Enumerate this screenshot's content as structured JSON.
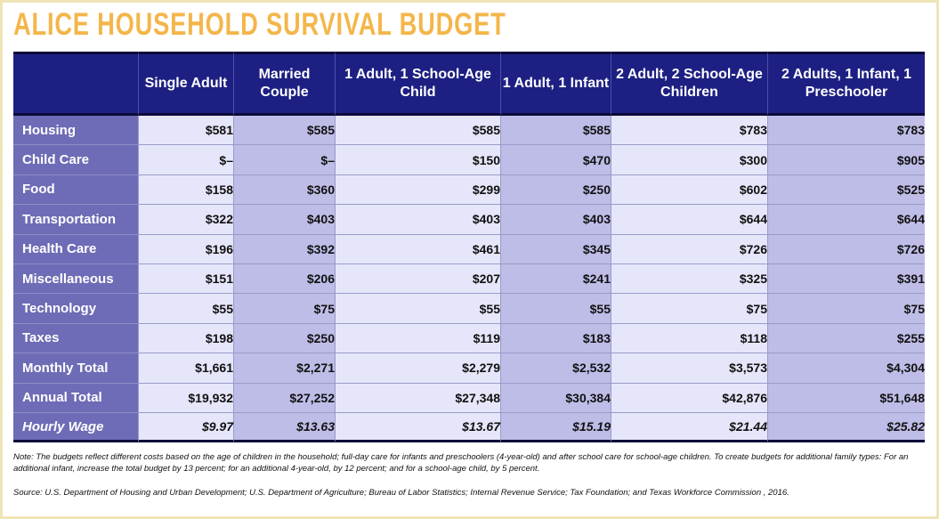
{
  "title": "ALICE HOUSEHOLD SURVIVAL BUDGET",
  "table": {
    "columns": [
      "",
      "Single Adult",
      "Married Couple",
      "1 Adult, 1 School-Age Child",
      "1 Adult, 1 Infant",
      "2 Adult, 2 School-Age Children",
      "2 Adults, 1 Infant, 1 Preschooler"
    ],
    "rows": [
      {
        "label": "Housing",
        "values": [
          "$581",
          "$585",
          "$585",
          "$585",
          "$783",
          "$783"
        ]
      },
      {
        "label": "Child Care",
        "values": [
          "$–",
          "$–",
          "$150",
          "$470",
          "$300",
          "$905"
        ]
      },
      {
        "label": "Food",
        "values": [
          "$158",
          "$360",
          "$299",
          "$250",
          "$602",
          "$525"
        ]
      },
      {
        "label": "Transportation",
        "values": [
          "$322",
          "$403",
          "$403",
          "$403",
          "$644",
          "$644"
        ]
      },
      {
        "label": "Health Care",
        "values": [
          "$196",
          "$392",
          "$461",
          "$345",
          "$726",
          "$726"
        ]
      },
      {
        "label": "Miscellaneous",
        "values": [
          "$151",
          "$206",
          "$207",
          "$241",
          "$325",
          "$391"
        ]
      },
      {
        "label": "Technology",
        "values": [
          "$55",
          "$75",
          "$55",
          "$55",
          "$75",
          "$75"
        ]
      },
      {
        "label": "Taxes",
        "values": [
          "$198",
          "$250",
          "$119",
          "$183",
          "$118",
          "$255"
        ]
      },
      {
        "label": "Monthly Total",
        "values": [
          "$1,661",
          "$2,271",
          "$2,279",
          "$2,532",
          "$3,573",
          "$4,304"
        ]
      },
      {
        "label": "Annual Total",
        "values": [
          "$19,932",
          "$27,252",
          "$27,348",
          "$30,384",
          "$42,876",
          "$51,648"
        ]
      },
      {
        "label": "Hourly Wage",
        "values": [
          "$9.97",
          "$13.63",
          "$13.67",
          "$15.19",
          "$21.44",
          "$25.82"
        ]
      }
    ]
  },
  "note": "Note: The budgets reflect different costs based on the age of children in the household; full-day care for infants and preschoolers (4-year-old) and after school care for school-age children. To create budgets for additional family types: For an additional infant, increase the total budget by 13 percent; for an additional 4-year-old, by 12 percent; and for a school-age child, by 5 percent.",
  "source": "Source: U.S. Department of Housing and Urban Development; U.S. Department of Agriculture; Bureau of Labor Statistics; Internal Revenue Service; Tax Foundation; and Texas Workforce Commission , 2016.",
  "colors": {
    "title": "#f4b64a",
    "header_bg": "#1d2082",
    "row_label_bg": "#6e6cb6",
    "cell_light": "#e6e6fb",
    "cell_dark": "#bebde8",
    "frame": "#efe4b8"
  }
}
